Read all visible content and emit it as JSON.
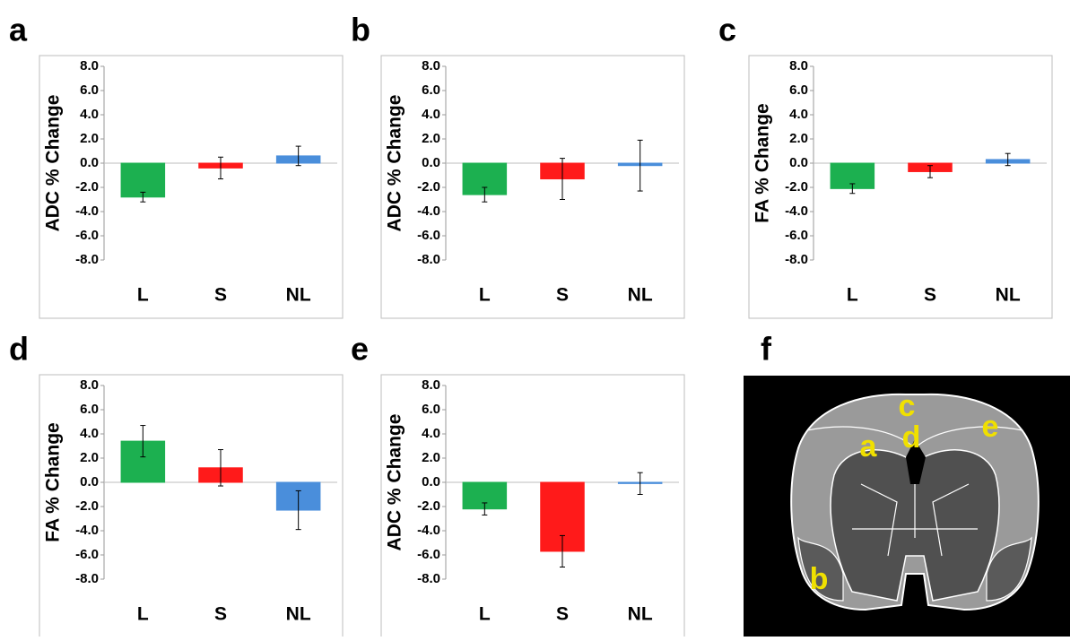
{
  "chart_data": [
    {
      "type": "bar",
      "panel": "a",
      "ylabel": "ADC % Change",
      "categories": [
        "L",
        "S",
        "NL"
      ],
      "values": [
        -2.8,
        -0.4,
        0.6
      ],
      "errors": [
        0.4,
        0.9,
        0.8
      ],
      "colors": [
        "#1cb050",
        "#ff1a1a",
        "#4a8edb"
      ],
      "ylim": [
        -8,
        8
      ],
      "yticks": [
        {
          "value": -8,
          "label": "-8.0"
        },
        {
          "value": -6,
          "label": "-6.0"
        },
        {
          "value": -4,
          "label": "-4.0"
        },
        {
          "value": -2,
          "label": "-2.0"
        },
        {
          "value": 0,
          "label": "0.0"
        },
        {
          "value": 2,
          "label": "2.0"
        },
        {
          "value": 4,
          "label": "4.0"
        },
        {
          "value": 6,
          "label": "6.0"
        },
        {
          "value": 8,
          "label": "8.0"
        }
      ]
    },
    {
      "type": "bar",
      "panel": "b",
      "ylabel": "ADC % Change",
      "categories": [
        "L",
        "S",
        "NL"
      ],
      "values": [
        -2.6,
        -1.3,
        -0.2
      ],
      "errors": [
        0.6,
        1.7,
        2.1
      ],
      "colors": [
        "#1cb050",
        "#ff1a1a",
        "#4a8edb"
      ],
      "ylim": [
        -8,
        8
      ],
      "yticks": [
        {
          "value": -8,
          "label": "-8.0"
        },
        {
          "value": -6,
          "label": "-6.0"
        },
        {
          "value": -4,
          "label": "-4.0"
        },
        {
          "value": -2,
          "label": "-2.0"
        },
        {
          "value": 0,
          "label": "0.0"
        },
        {
          "value": 2,
          "label": "2.0"
        },
        {
          "value": 4,
          "label": "4.0"
        },
        {
          "value": 6,
          "label": "6.0"
        },
        {
          "value": 8,
          "label": "8.0"
        }
      ]
    },
    {
      "type": "bar",
      "panel": "c",
      "ylabel": "FA % Change",
      "categories": [
        "L",
        "S",
        "NL"
      ],
      "values": [
        -2.1,
        -0.7,
        0.3
      ],
      "errors": [
        0.4,
        0.5,
        0.5
      ],
      "colors": [
        "#1cb050",
        "#ff1a1a",
        "#4a8edb"
      ],
      "ylim": [
        -8,
        8
      ],
      "yticks": [
        {
          "value": -8,
          "label": "-8.0"
        },
        {
          "value": -6,
          "label": "-6.0"
        },
        {
          "value": -4,
          "label": "-4.0"
        },
        {
          "value": -2,
          "label": "-2.0"
        },
        {
          "value": 0,
          "label": "0.0"
        },
        {
          "value": 2,
          "label": "2.0"
        },
        {
          "value": 4,
          "label": "4.0"
        },
        {
          "value": 6,
          "label": "6.0"
        },
        {
          "value": 8,
          "label": "8.0"
        }
      ]
    },
    {
      "type": "bar",
      "panel": "d",
      "ylabel": "FA % Change",
      "categories": [
        "L",
        "S",
        "NL"
      ],
      "values": [
        3.4,
        1.2,
        -2.3
      ],
      "errors": [
        1.3,
        1.5,
        1.6
      ],
      "colors": [
        "#1cb050",
        "#ff1a1a",
        "#4a8edb"
      ],
      "ylim": [
        -8,
        8
      ],
      "yticks": [
        {
          "value": -8,
          "label": "-8.0"
        },
        {
          "value": -6,
          "label": "-6.0"
        },
        {
          "value": -4,
          "label": "-4.0"
        },
        {
          "value": -2,
          "label": "-2.0"
        },
        {
          "value": 0,
          "label": "0.0"
        },
        {
          "value": 2,
          "label": "2.0"
        },
        {
          "value": 4,
          "label": "4.0"
        },
        {
          "value": 6,
          "label": "6.0"
        },
        {
          "value": 8,
          "label": "8.0"
        }
      ]
    },
    {
      "type": "bar",
      "panel": "e",
      "ylabel": "ADC % Change",
      "categories": [
        "L",
        "S",
        "NL"
      ],
      "values": [
        -2.2,
        -5.7,
        -0.1
      ],
      "errors": [
        0.5,
        1.3,
        0.9
      ],
      "colors": [
        "#1cb050",
        "#ff1a1a",
        "#4a8edb"
      ],
      "ylim": [
        -8,
        8
      ],
      "yticks": [
        {
          "value": -8,
          "label": "-8.0"
        },
        {
          "value": -6,
          "label": "-6.0"
        },
        {
          "value": -4,
          "label": "-4.0"
        },
        {
          "value": -2,
          "label": "-2.0"
        },
        {
          "value": 0,
          "label": "0.0"
        },
        {
          "value": 2,
          "label": "2.0"
        },
        {
          "value": 4,
          "label": "4.0"
        },
        {
          "value": 6,
          "label": "6.0"
        },
        {
          "value": 8,
          "label": "8.0"
        }
      ]
    }
  ],
  "image_panel": {
    "panel": "f",
    "region_labels": [
      "a",
      "b",
      "c",
      "d",
      "e"
    ]
  }
}
